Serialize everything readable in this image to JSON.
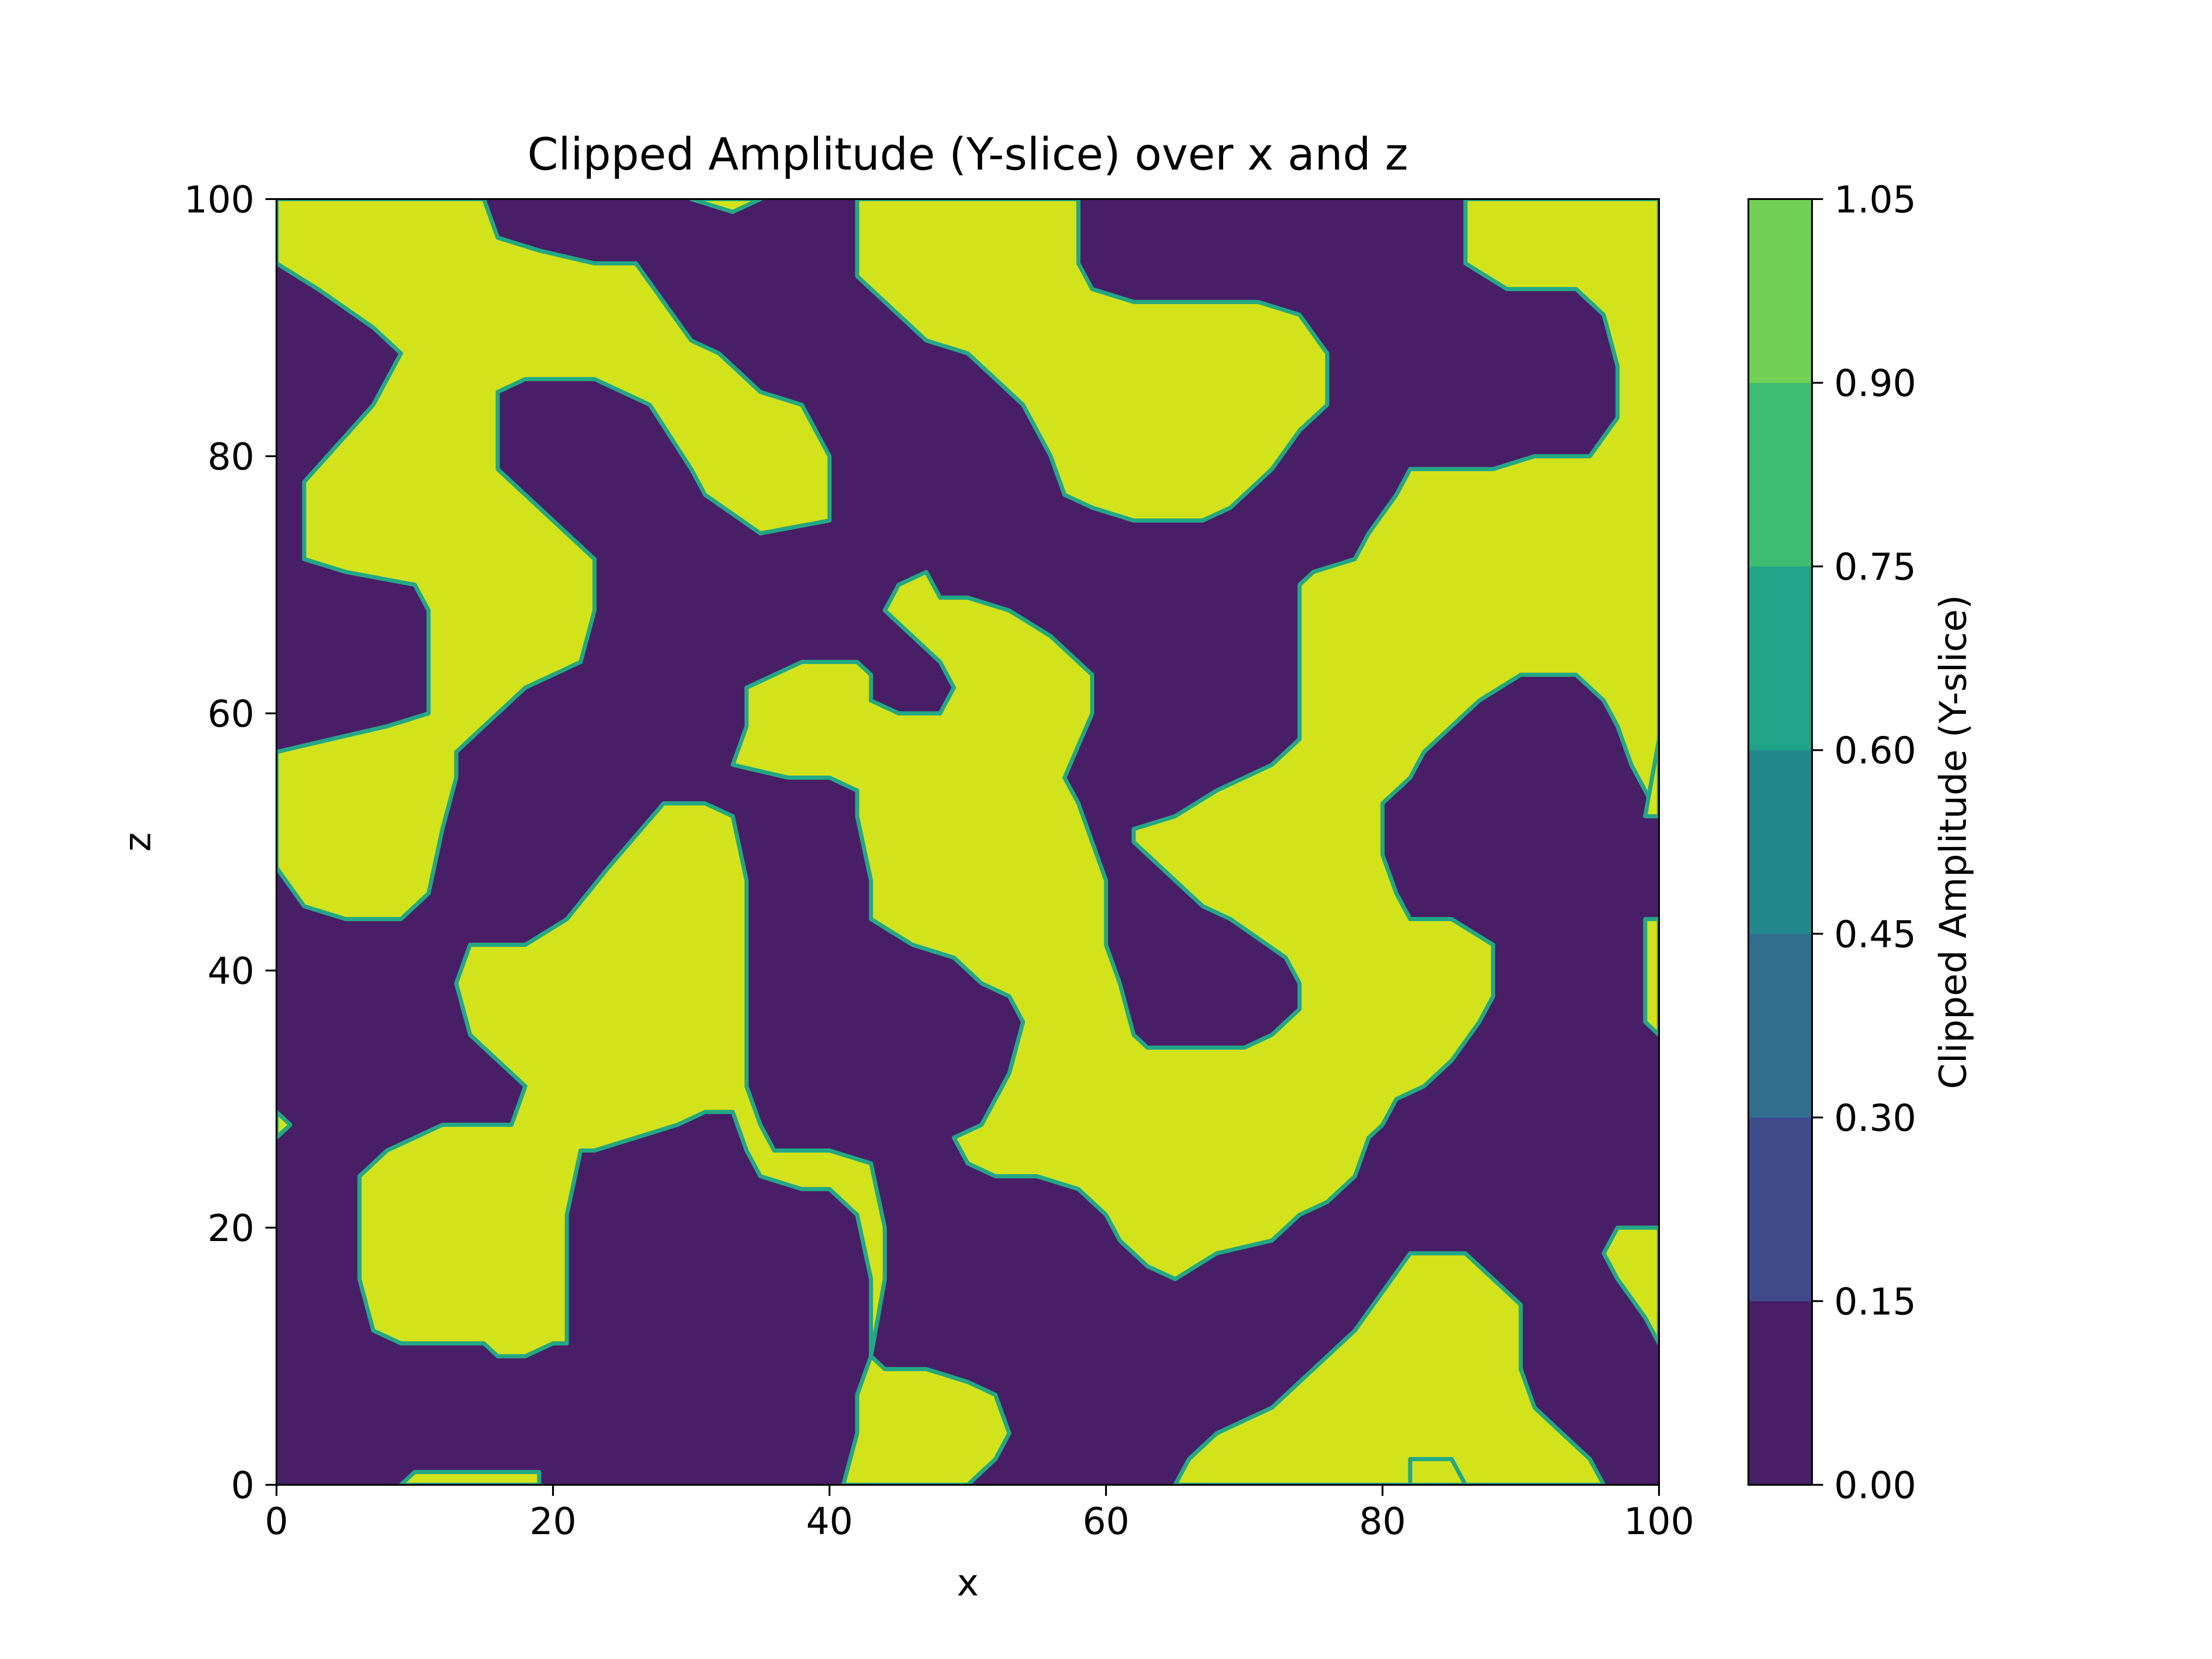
{
  "chart_data": {
    "type": "heatmap",
    "title": "Clipped Amplitude (Y-slice) over x and z",
    "xlabel": "x",
    "ylabel": "z",
    "xlim": [
      0,
      100
    ],
    "ylim": [
      0,
      100
    ],
    "x_ticks": [
      "0",
      "20",
      "40",
      "60",
      "80",
      "100"
    ],
    "y_ticks": [
      "0",
      "20",
      "40",
      "60",
      "80",
      "100"
    ],
    "grid": false,
    "colorbar": {
      "label": "Clipped Amplitude (Y-slice)",
      "levels": [
        0.0,
        0.15,
        0.3,
        0.45,
        0.6,
        0.75,
        0.9,
        1.05
      ],
      "tick_labels": [
        "0.00",
        "0.15",
        "0.30",
        "0.45",
        "0.60",
        "0.75",
        "0.90",
        "1.05"
      ],
      "colors": [
        "#481f66",
        "#3e4a89",
        "#306d8e",
        "#24878e",
        "#20a386",
        "#3fbc73",
        "#73d056",
        "#d2e21b"
      ]
    },
    "regions": {
      "low_value_color": "#481f66",
      "high_value_color": "#d2e21b",
      "edge_color": "#22a884",
      "high_value_polygons": [
        [
          [
            0,
            95
          ],
          [
            3,
            93
          ],
          [
            7,
            90
          ],
          [
            9,
            88
          ],
          [
            7,
            84
          ],
          [
            2,
            78
          ],
          [
            2,
            72
          ],
          [
            5,
            71
          ],
          [
            10,
            70
          ],
          [
            11,
            68
          ],
          [
            11,
            60
          ],
          [
            8,
            59
          ],
          [
            4,
            58
          ],
          [
            0,
            57
          ],
          [
            0,
            52
          ],
          [
            0,
            48
          ],
          [
            2,
            45
          ],
          [
            5,
            44
          ],
          [
            9,
            44
          ],
          [
            11,
            46
          ],
          [
            12,
            51
          ],
          [
            13,
            55
          ],
          [
            13,
            57
          ],
          [
            18,
            62
          ],
          [
            22,
            64
          ],
          [
            23,
            68
          ],
          [
            23,
            72
          ],
          [
            19,
            76
          ],
          [
            16,
            79
          ],
          [
            16,
            85
          ],
          [
            18,
            86
          ],
          [
            23,
            86
          ],
          [
            27,
            84
          ],
          [
            30,
            79
          ],
          [
            31,
            77
          ],
          [
            35,
            74
          ],
          [
            40,
            75
          ],
          [
            40,
            80
          ],
          [
            38,
            84
          ],
          [
            35,
            85
          ],
          [
            32,
            88
          ],
          [
            30,
            89
          ],
          [
            28,
            92
          ],
          [
            26,
            95
          ],
          [
            23,
            95
          ],
          [
            19,
            96
          ],
          [
            16,
            97
          ],
          [
            15,
            100
          ],
          [
            0,
            100
          ]
        ],
        [
          [
            30,
            100
          ],
          [
            33,
            99
          ],
          [
            35,
            100
          ]
        ],
        [
          [
            42,
            100
          ],
          [
            42,
            94
          ],
          [
            44,
            92
          ],
          [
            47,
            89
          ],
          [
            50,
            88
          ],
          [
            54,
            84
          ],
          [
            56,
            80
          ],
          [
            57,
            77
          ],
          [
            59,
            76
          ],
          [
            62,
            75
          ],
          [
            67,
            75
          ],
          [
            69,
            76
          ],
          [
            72,
            79
          ],
          [
            74,
            82
          ],
          [
            76,
            84
          ],
          [
            76,
            88
          ],
          [
            74,
            91
          ],
          [
            71,
            92
          ],
          [
            66,
            92
          ],
          [
            62,
            92
          ],
          [
            59,
            93
          ],
          [
            58,
            95
          ],
          [
            58,
            100
          ]
        ],
        [
          [
            86,
            100
          ],
          [
            86,
            95
          ],
          [
            89,
            93
          ],
          [
            94,
            93
          ],
          [
            96,
            91
          ],
          [
            97,
            87
          ],
          [
            97,
            83
          ],
          [
            95,
            80
          ],
          [
            91,
            80
          ],
          [
            88,
            79
          ],
          [
            82,
            79
          ],
          [
            81,
            77
          ],
          [
            79,
            74
          ],
          [
            78,
            72
          ],
          [
            75,
            71
          ],
          [
            74,
            70
          ],
          [
            74,
            66
          ],
          [
            74,
            58
          ],
          [
            72,
            56
          ],
          [
            68,
            54
          ],
          [
            65,
            52
          ],
          [
            62,
            51
          ],
          [
            62,
            50
          ],
          [
            65,
            47
          ],
          [
            67,
            45
          ],
          [
            69,
            44
          ],
          [
            73,
            41
          ],
          [
            74,
            39
          ],
          [
            74,
            37
          ],
          [
            72,
            35
          ],
          [
            70,
            34
          ],
          [
            63,
            34
          ],
          [
            62,
            35
          ],
          [
            61,
            39
          ],
          [
            60,
            42
          ],
          [
            60,
            47
          ],
          [
            59,
            50
          ],
          [
            58,
            53
          ],
          [
            57,
            55
          ],
          [
            59,
            60
          ],
          [
            59,
            63
          ],
          [
            56,
            66
          ],
          [
            53,
            68
          ],
          [
            50,
            69
          ],
          [
            48,
            69
          ],
          [
            47,
            71
          ],
          [
            45,
            70
          ],
          [
            44,
            68
          ],
          [
            45,
            67
          ],
          [
            48,
            64
          ],
          [
            49,
            62
          ],
          [
            48,
            60
          ],
          [
            45,
            60
          ],
          [
            43,
            61
          ],
          [
            43,
            63
          ],
          [
            42,
            64
          ],
          [
            38,
            64
          ],
          [
            36,
            63
          ],
          [
            34,
            62
          ],
          [
            34,
            59
          ],
          [
            33,
            56
          ],
          [
            37,
            55
          ],
          [
            40,
            55
          ],
          [
            42,
            54
          ],
          [
            42,
            52
          ],
          [
            43,
            47
          ],
          [
            43,
            44
          ],
          [
            46,
            42
          ],
          [
            49,
            41
          ],
          [
            51,
            39
          ],
          [
            53,
            38
          ],
          [
            54,
            36
          ],
          [
            53,
            32
          ],
          [
            52,
            30
          ],
          [
            51,
            28
          ],
          [
            49,
            27
          ],
          [
            50,
            25
          ],
          [
            52,
            24
          ],
          [
            55,
            24
          ],
          [
            58,
            23
          ],
          [
            60,
            21
          ],
          [
            61,
            19
          ],
          [
            63,
            17
          ],
          [
            65,
            16
          ],
          [
            68,
            18
          ],
          [
            72,
            19
          ],
          [
            74,
            21
          ],
          [
            76,
            22
          ],
          [
            78,
            24
          ],
          [
            79,
            27
          ],
          [
            80,
            28
          ],
          [
            81,
            30
          ],
          [
            83,
            31
          ],
          [
            85,
            33
          ],
          [
            87,
            36
          ],
          [
            88,
            38
          ],
          [
            88,
            42
          ],
          [
            85,
            44
          ],
          [
            82,
            44
          ],
          [
            81,
            46
          ],
          [
            80,
            49
          ],
          [
            80,
            53
          ],
          [
            82,
            55
          ],
          [
            83,
            57
          ],
          [
            85,
            59
          ],
          [
            87,
            61
          ],
          [
            90,
            63
          ],
          [
            94,
            63
          ],
          [
            96,
            61
          ],
          [
            97,
            59
          ],
          [
            98,
            56
          ],
          [
            100,
            52
          ],
          [
            100,
            100
          ]
        ],
        [
          [
            100,
            52
          ],
          [
            100,
            58
          ],
          [
            99,
            52
          ]
        ],
        [
          [
            100,
            44
          ],
          [
            100,
            35
          ],
          [
            99,
            36
          ],
          [
            99,
            44
          ]
        ],
        [
          [
            0,
            29
          ],
          [
            0,
            27
          ],
          [
            1,
            28
          ]
        ],
        [
          [
            6,
            24
          ],
          [
            8,
            26
          ],
          [
            10,
            27
          ],
          [
            12,
            28
          ],
          [
            17,
            28
          ],
          [
            18,
            31
          ],
          [
            14,
            35
          ],
          [
            13,
            39
          ],
          [
            14,
            42
          ],
          [
            18,
            42
          ],
          [
            21,
            44
          ],
          [
            24,
            48
          ],
          [
            28,
            53
          ],
          [
            31,
            53
          ],
          [
            33,
            52
          ],
          [
            34,
            47
          ],
          [
            34,
            43
          ],
          [
            34,
            37
          ],
          [
            34,
            31
          ],
          [
            35,
            28
          ],
          [
            36,
            26
          ],
          [
            40,
            26
          ],
          [
            43,
            25
          ],
          [
            44,
            20
          ],
          [
            44,
            16
          ],
          [
            43,
            10
          ],
          [
            42,
            7
          ],
          [
            42,
            4
          ],
          [
            41,
            0
          ],
          [
            50,
            0
          ],
          [
            52,
            2
          ],
          [
            53,
            4
          ],
          [
            52,
            7
          ],
          [
            50,
            8
          ],
          [
            47,
            9
          ],
          [
            44,
            9
          ],
          [
            43,
            10
          ],
          [
            43,
            16
          ],
          [
            42,
            21
          ],
          [
            40,
            23
          ],
          [
            38,
            23
          ],
          [
            35,
            24
          ],
          [
            34,
            26
          ],
          [
            33,
            29
          ],
          [
            31,
            29
          ],
          [
            29,
            28
          ],
          [
            26,
            27
          ],
          [
            23,
            26
          ],
          [
            22,
            26
          ],
          [
            21,
            21
          ],
          [
            21,
            14
          ],
          [
            21,
            11
          ],
          [
            20,
            11
          ],
          [
            18,
            10
          ],
          [
            16,
            10
          ],
          [
            15,
            11
          ],
          [
            9,
            11
          ],
          [
            7,
            12
          ],
          [
            6,
            16
          ],
          [
            6,
            20
          ]
        ],
        [
          [
            9,
            0
          ],
          [
            10,
            1
          ],
          [
            14,
            1
          ],
          [
            19,
            1
          ],
          [
            19,
            0
          ]
        ],
        [
          [
            100,
            11
          ],
          [
            99,
            13
          ],
          [
            97,
            16
          ],
          [
            96,
            18
          ],
          [
            97,
            20
          ],
          [
            100,
            20
          ]
        ],
        [
          [
            65,
            0
          ],
          [
            66,
            2
          ],
          [
            68,
            4
          ],
          [
            72,
            6
          ],
          [
            74,
            8
          ],
          [
            76,
            10
          ],
          [
            78,
            12
          ],
          [
            80,
            15
          ],
          [
            82,
            18
          ],
          [
            86,
            18
          ],
          [
            88,
            16
          ],
          [
            90,
            14
          ],
          [
            90,
            9
          ],
          [
            91,
            6
          ],
          [
            93,
            4
          ],
          [
            95,
            2
          ],
          [
            96,
            0
          ]
        ],
        [
          [
            82,
            0
          ],
          [
            82,
            2
          ],
          [
            85,
            2
          ],
          [
            86,
            0
          ]
        ]
      ]
    }
  }
}
